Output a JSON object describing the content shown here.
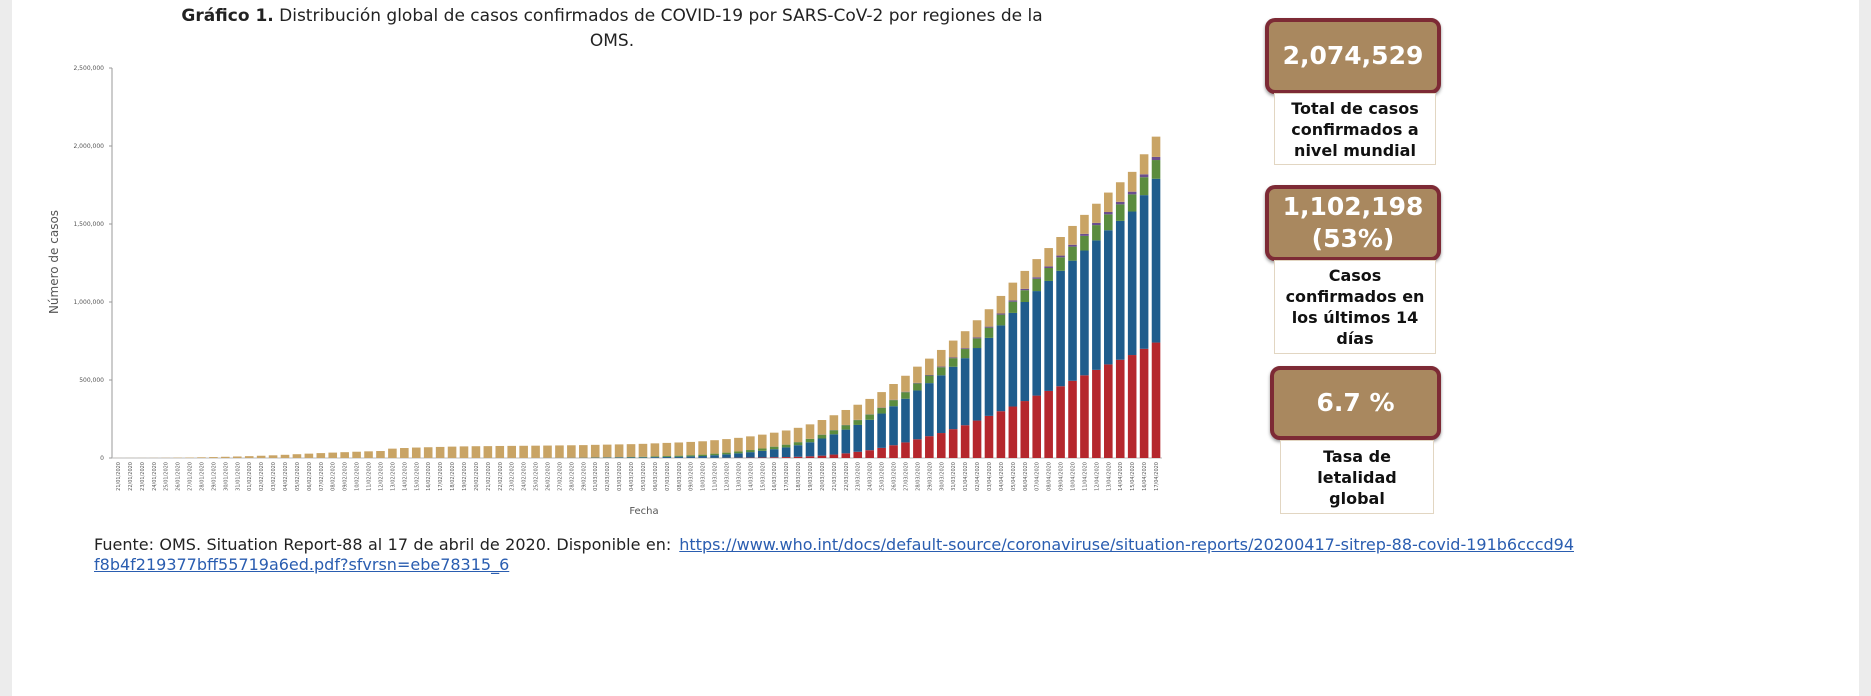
{
  "chart_data": {
    "type": "stacked_bar",
    "figure_label": "Gráfico 1.",
    "title": "Distribución global de casos confirmados de COVID-19 por SARS-CoV-2 por regiones de la OMS.",
    "y_label": "Número de casos",
    "x_label": "Fecha",
    "categories": [
      "21/01/2020",
      "22/01/2020",
      "23/01/2020",
      "24/01/2020",
      "25/01/2020",
      "26/01/2020",
      "27/01/2020",
      "28/01/2020",
      "29/01/2020",
      "30/01/2020",
      "31/01/2020",
      "01/02/2020",
      "02/02/2020",
      "03/02/2020",
      "04/02/2020",
      "05/02/2020",
      "06/02/2020",
      "07/02/2020",
      "08/02/2020",
      "09/02/2020",
      "10/02/2020",
      "11/02/2020",
      "12/02/2020",
      "13/02/2020",
      "14/02/2020",
      "15/02/2020",
      "16/02/2020",
      "17/02/2020",
      "18/02/2020",
      "19/02/2020",
      "20/02/2020",
      "21/02/2020",
      "22/02/2020",
      "23/02/2020",
      "24/02/2020",
      "25/02/2020",
      "26/02/2020",
      "27/02/2020",
      "28/02/2020",
      "29/02/2020",
      "01/03/2020",
      "02/03/2020",
      "03/03/2020",
      "04/03/2020",
      "05/03/2020",
      "06/03/2020",
      "07/03/2020",
      "08/03/2020",
      "09/03/2020",
      "10/03/2020",
      "11/03/2020",
      "12/03/2020",
      "13/03/2020",
      "14/03/2020",
      "15/03/2020",
      "16/03/2020",
      "17/03/2020",
      "18/03/2020",
      "19/03/2020",
      "20/03/2020",
      "21/03/2020",
      "22/03/2020",
      "23/03/2020",
      "24/03/2020",
      "25/03/2020",
      "26/03/2020",
      "27/03/2020",
      "28/03/2020",
      "29/03/2020",
      "30/03/2020",
      "31/03/2020",
      "01/04/2020",
      "02/04/2020",
      "03/04/2020",
      "04/04/2020",
      "05/04/2020",
      "06/04/2020",
      "07/04/2020",
      "08/04/2020",
      "09/04/2020",
      "10/04/2020",
      "11/04/2020",
      "12/04/2020",
      "13/04/2020",
      "14/04/2020",
      "15/04/2020",
      "16/04/2020",
      "17/04/2020"
    ],
    "series": [
      {
        "color": "#b5272d",
        "values": [
          0,
          0,
          0,
          0,
          0,
          0,
          0,
          0,
          0,
          0,
          0,
          0,
          0,
          0,
          0,
          0,
          0,
          0,
          0,
          0,
          0,
          0,
          0,
          0,
          0,
          0,
          0,
          0,
          0,
          0,
          0,
          0,
          0,
          0,
          0,
          0,
          0,
          0,
          0,
          0,
          80,
          100,
          130,
          170,
          230,
          300,
          400,
          500,
          550,
          600,
          1000,
          1500,
          2000,
          2500,
          3000,
          4500,
          6000,
          8000,
          11000,
          15000,
          22000,
          30000,
          40000,
          50000,
          65000,
          82000,
          100000,
          120000,
          140000,
          160000,
          185000,
          210000,
          240000,
          270000,
          300000,
          330000,
          365000,
          400000,
          430000,
          460000,
          495000,
          530000,
          565000,
          600000,
          630000,
          660000,
          700000,
          740000
        ]
      },
      {
        "color": "#1f5c8c",
        "values": [
          0,
          0,
          0,
          0,
          0,
          0,
          0,
          0,
          0,
          0,
          0,
          0,
          0,
          0,
          0,
          0,
          0,
          0,
          0,
          0,
          0,
          0,
          0,
          0,
          0,
          0,
          0,
          0,
          0,
          0,
          0,
          50,
          100,
          150,
          250,
          400,
          600,
          800,
          1100,
          1500,
          2200,
          2600,
          3000,
          3500,
          4000,
          5500,
          6800,
          8000,
          10000,
          12000,
          17000,
          22000,
          28000,
          35000,
          43000,
          52000,
          62000,
          74000,
          90000,
          110000,
          130000,
          152000,
          172000,
          195000,
          220000,
          250000,
          280000,
          313000,
          340000,
          370000,
          400000,
          430000,
          465000,
          500000,
          550000,
          600000,
          635000,
          670000,
          705000,
          740000,
          770000,
          800000,
          830000,
          860000,
          890000,
          920000,
          985000,
          1050000
        ]
      },
      {
        "color": "#5b8c3e",
        "values": [
          0,
          0,
          0,
          0,
          0,
          0,
          0,
          0,
          0,
          0,
          0,
          0,
          0,
          0,
          0,
          0,
          0,
          0,
          0,
          0,
          0,
          0,
          0,
          0,
          0,
          0,
          0,
          0,
          0,
          0,
          5,
          10,
          30,
          50,
          80,
          150,
          200,
          300,
          400,
          600,
          1000,
          1500,
          2000,
          2500,
          3500,
          4500,
          5500,
          6500,
          7500,
          9000,
          10000,
          11000,
          12000,
          13500,
          15000,
          16000,
          17500,
          19500,
          21500,
          24000,
          26000,
          28500,
          31000,
          33500,
          36000,
          39000,
          42000,
          45500,
          48500,
          52000,
          55000,
          58500,
          62000,
          65500,
          69000,
          72000,
          75500,
          79000,
          83000,
          86500,
          90000,
          94000,
          98000,
          102000,
          106000,
          110000,
          115000,
          120000
        ]
      },
      {
        "color": "#6b4e8e",
        "values": [
          0,
          0,
          0,
          0,
          0,
          0,
          0,
          0,
          0,
          0,
          0,
          0,
          0,
          0,
          0,
          0,
          0,
          0,
          0,
          0,
          0,
          0,
          0,
          0,
          0,
          0,
          0,
          0,
          0,
          0,
          0,
          0,
          0,
          0,
          0,
          0,
          0,
          0,
          0,
          0,
          50,
          50,
          50,
          50,
          50,
          50,
          50,
          50,
          50,
          100,
          120,
          150,
          200,
          250,
          300,
          350,
          400,
          500,
          700,
          1000,
          1100,
          1300,
          1500,
          1700,
          2000,
          2300,
          2700,
          3100,
          3600,
          4100,
          4700,
          5300,
          6000,
          6700,
          7400,
          8100,
          8800,
          9500,
          10300,
          11100,
          12000,
          13000,
          14000,
          15000,
          16100,
          17200,
          18500,
          20000
        ]
      },
      {
        "color": "#c9a465",
        "values": [
          300,
          440,
          580,
          850,
          1300,
          2000,
          2800,
          4500,
          6000,
          7800,
          9700,
          11800,
          14500,
          17200,
          20500,
          24300,
          28000,
          31400,
          34600,
          37300,
          40200,
          42700,
          44700,
          60000,
          64000,
          67000,
          69000,
          71000,
          73000,
          74500,
          75500,
          76000,
          77000,
          77500,
          78000,
          78500,
          79000,
          79500,
          80000,
          80500,
          81000,
          81500,
          82000,
          82500,
          83000,
          83500,
          84000,
          84500,
          85000,
          85500,
          86000,
          86500,
          87000,
          87500,
          88500,
          89500,
          90500,
          91500,
          92500,
          93500,
          95000,
          96000,
          97000,
          98500,
          99500,
          101000,
          102500,
          104000,
          105000,
          106500,
          108000,
          109000,
          110000,
          111500,
          112500,
          114000,
          115000,
          116500,
          117500,
          119000,
          120500,
          121500,
          123000,
          124500,
          125500,
          127000,
          128500,
          130000
        ]
      }
    ],
    "ylim": [
      0,
      2500000
    ],
    "yticks": [
      0,
      {
        "value": 500000,
        "label": "500,000"
      },
      {
        "value": 1000000,
        "label": "1,000,000"
      },
      {
        "value": 1500000,
        "label": "1,500,000"
      },
      {
        "value": 2000000,
        "label": "2,000,000"
      },
      {
        "value": 2500000,
        "label": "2,500,000"
      }
    ],
    "grid": false
  },
  "stats": [
    {
      "value": "2,074,529",
      "label": "Total de casos confirmados a nivel mundial"
    },
    {
      "value": "1,102,198",
      "share": "(53%)",
      "label": "Casos confirmados en los últimos 14 días"
    },
    {
      "value": "6.7 %",
      "label": "Tasa de letalidad global"
    }
  ],
  "source": {
    "text": "Fuente: OMS. Situation Report-88 al 17 de abril de 2020. Disponible en:",
    "link": "https://www.who.int/docs/default-source/coronaviruse/situation-reports/20200417-sitrep-88-covid-191b6cccd94f8b4f219377bff55719a6ed.pdf?sfvrsn=ebe78315_6"
  }
}
